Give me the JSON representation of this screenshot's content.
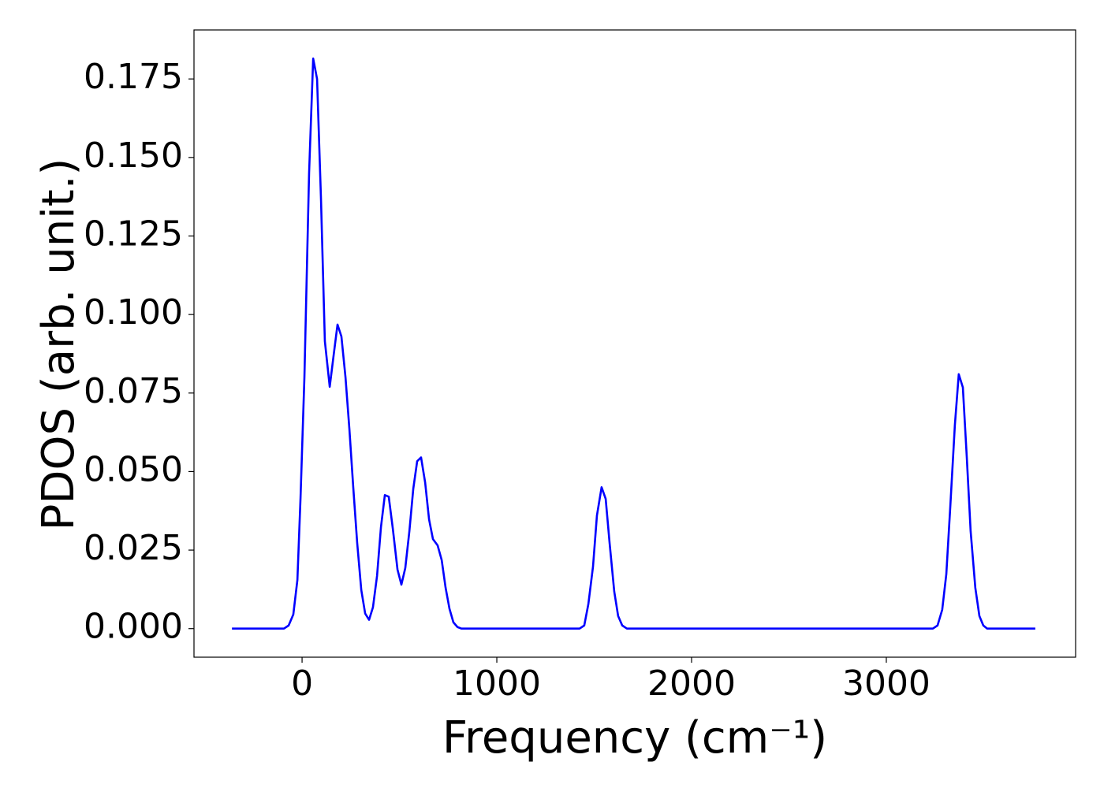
{
  "chart_data": {
    "type": "line",
    "x_label": "Frequency (cm⁻¹)",
    "y_label": "PDOS (arb. unit.)",
    "x": [
      -360,
      -93,
      -69,
      -45,
      -24,
      -8,
      12,
      36,
      57,
      77,
      97,
      117,
      142,
      162,
      182,
      202,
      223,
      243,
      263,
      283,
      304,
      324,
      344,
      364,
      385,
      405,
      425,
      445,
      466,
      490,
      510,
      530,
      551,
      571,
      591,
      611,
      632,
      652,
      672,
      696,
      717,
      737,
      757,
      777,
      798,
      818,
      1425,
      1449,
      1470,
      1494,
      1514,
      1538,
      1559,
      1579,
      1603,
      1623,
      1644,
      1668,
      3239,
      3263,
      3287,
      3308,
      3328,
      3352,
      3372,
      3393,
      3413,
      3433,
      3457,
      3478,
      3498,
      3518,
      3765
    ],
    "series": [
      {
        "color": "#0000ff",
        "values": [
          0,
          0,
          0.001,
          0.0045,
          0.0155,
          0.0415,
          0.08,
          0.145,
          0.1815,
          0.175,
          0.137,
          0.0915,
          0.077,
          0.087,
          0.0968,
          0.093,
          0.08,
          0.0635,
          0.0448,
          0.0273,
          0.0123,
          0.0048,
          0.0028,
          0.0068,
          0.0168,
          0.0323,
          0.0425,
          0.042,
          0.0318,
          0.0188,
          0.014,
          0.0193,
          0.031,
          0.0445,
          0.0533,
          0.0545,
          0.0465,
          0.0348,
          0.0285,
          0.0265,
          0.0218,
          0.013,
          0.0063,
          0.002,
          0.0005,
          0,
          0,
          0.001,
          0.0078,
          0.0198,
          0.036,
          0.045,
          0.0413,
          0.0273,
          0.0118,
          0.004,
          0.001,
          0,
          0,
          0.001,
          0.006,
          0.0173,
          0.0383,
          0.0648,
          0.081,
          0.0768,
          0.0548,
          0.031,
          0.013,
          0.004,
          0.001,
          0,
          0
        ]
      }
    ],
    "xlim": [
      -555,
      3972
    ],
    "ylim": [
      -0.0091,
      0.1906
    ],
    "xticks": [
      0,
      1000,
      2000,
      3000
    ],
    "yticks": [
      {
        "value": 0,
        "label": "0.000"
      },
      {
        "value": 0.025,
        "label": "0.025"
      },
      {
        "value": 0.05,
        "label": "0.050"
      },
      {
        "value": 0.075,
        "label": "0.075"
      },
      {
        "value": 0.1,
        "label": "0.100"
      },
      {
        "value": 0.125,
        "label": "0.125"
      },
      {
        "value": 0.15,
        "label": "0.150"
      },
      {
        "value": 0.175,
        "label": "0.175"
      }
    ],
    "grid": false
  }
}
